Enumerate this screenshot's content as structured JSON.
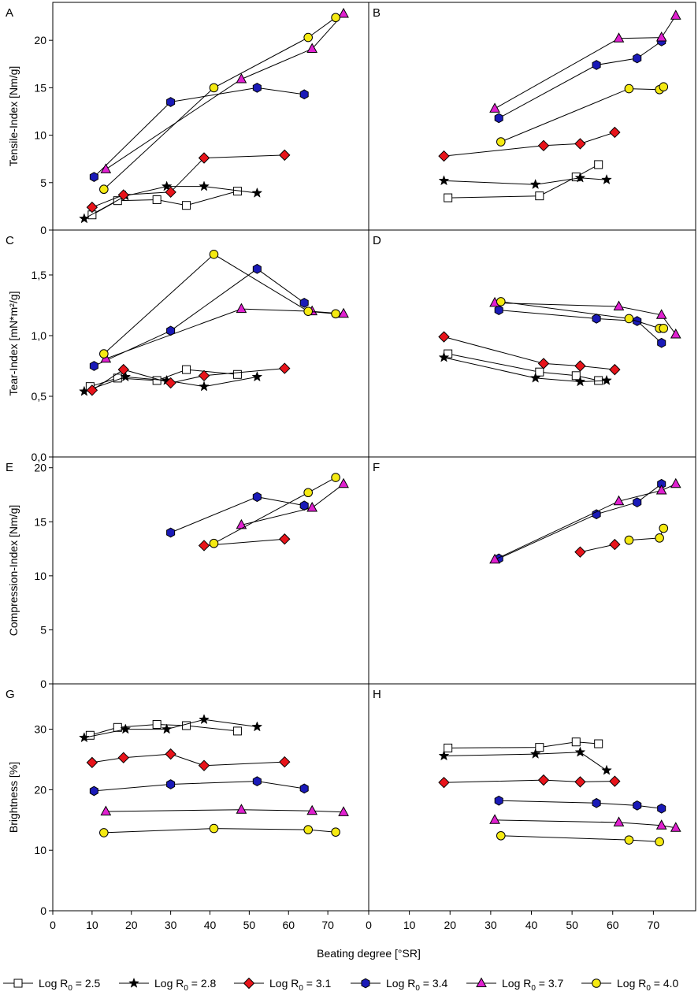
{
  "chart_data": {
    "type": "scatter",
    "x_label": "Beating degree [°SR]",
    "x_ticks": [
      "0",
      "10",
      "20",
      "30",
      "40",
      "50",
      "60",
      "70"
    ],
    "x_range": [
      0,
      80
    ],
    "legend": [
      {
        "key": "s25",
        "text": "Log R",
        "sub": "0",
        "value": " = 2.5",
        "marker": "square",
        "fill": "#ffffff"
      },
      {
        "key": "s28",
        "text": "Log R",
        "sub": "0",
        "value": " = 2.8",
        "marker": "star",
        "fill": "#000000"
      },
      {
        "key": "s31",
        "text": "Log R",
        "sub": "0",
        "value": " = 3.1",
        "marker": "diamond",
        "fill": "#e8141b"
      },
      {
        "key": "s34",
        "text": "Log R",
        "sub": "0",
        "value": " = 3.4",
        "marker": "hexagon",
        "fill": "#1a1ab8"
      },
      {
        "key": "s37",
        "text": "Log R",
        "sub": "0",
        "value": " = 3.7",
        "marker": "triangle",
        "fill": "#e020d0"
      },
      {
        "key": "s40",
        "text": "Log R",
        "sub": "0",
        "value": " = 4.0",
        "marker": "circle",
        "fill": "#f5ea12"
      }
    ],
    "rows": [
      {
        "ylabel": "Tensile-Index [Nm/g]",
        "ylim": [
          0,
          24
        ],
        "yticks": [
          0,
          5,
          10,
          15,
          20
        ],
        "ytick_labels": [
          "0",
          "5",
          "10",
          "15",
          "20"
        ],
        "panels": [
          {
            "letter": "A",
            "series": {
              "s25": [
                [
                  10,
                  1.6
                ],
                [
                  16.5,
                  3.1
                ],
                [
                  26.5,
                  3.2
                ],
                [
                  34,
                  2.6
                ],
                [
                  47,
                  4.1
                ]
              ],
              "s28": [
                [
                  8,
                  1.2
                ],
                [
                  18.5,
                  3.6
                ],
                [
                  29,
                  4.6
                ],
                [
                  38.5,
                  4.6
                ],
                [
                  52,
                  3.9
                ]
              ],
              "s31": [
                [
                  10,
                  2.4
                ],
                [
                  18,
                  3.7
                ],
                [
                  30,
                  4.0
                ],
                [
                  38.5,
                  7.6
                ],
                [
                  59,
                  7.9
                ]
              ],
              "s34": [
                [
                  10.5,
                  5.6
                ],
                [
                  30,
                  13.5
                ],
                [
                  52,
                  15.0
                ],
                [
                  64,
                  14.3
                ]
              ],
              "s37": [
                [
                  13.5,
                  6.4
                ],
                [
                  48,
                  15.9
                ],
                [
                  66,
                  19.1
                ],
                [
                  74,
                  22.8
                ]
              ],
              "s40": [
                [
                  13,
                  4.3
                ],
                [
                  41,
                  15.0
                ],
                [
                  65,
                  20.3
                ],
                [
                  72,
                  22.4
                ]
              ]
            }
          },
          {
            "letter": "B",
            "series": {
              "s25": [
                [
                  19.5,
                  3.4
                ],
                [
                  42,
                  3.6
                ],
                [
                  51,
                  5.6
                ],
                [
                  56.5,
                  6.9
                ]
              ],
              "s28": [
                [
                  18.5,
                  5.2
                ],
                [
                  41,
                  4.8
                ],
                [
                  52,
                  5.5
                ],
                [
                  58.5,
                  5.3
                ]
              ],
              "s31": [
                [
                  18.5,
                  7.8
                ],
                [
                  43,
                  8.9
                ],
                [
                  52,
                  9.1
                ],
                [
                  60.5,
                  10.3
                ]
              ],
              "s34": [
                [
                  32,
                  11.8
                ],
                [
                  56,
                  17.4
                ],
                [
                  66,
                  18.1
                ],
                [
                  72,
                  19.9
                ]
              ],
              "s37": [
                [
                  31,
                  12.8
                ],
                [
                  61.5,
                  20.2
                ],
                [
                  72,
                  20.3
                ],
                [
                  75.5,
                  22.6
                ]
              ],
              "s40": [
                [
                  32.5,
                  9.3
                ],
                [
                  64,
                  14.9
                ],
                [
                  71.5,
                  14.8
                ],
                [
                  72.5,
                  15.1
                ]
              ]
            }
          }
        ]
      },
      {
        "ylabel": "Tear-Index [mN*m²/g]",
        "ylim": [
          0,
          1.87
        ],
        "yticks": [
          0,
          0.5,
          1.0,
          1.5
        ],
        "ytick_labels": [
          "0,0",
          "0,5",
          "1,0",
          "1,5"
        ],
        "panels": [
          {
            "letter": "C",
            "series": {
              "s25": [
                [
                  9.5,
                  0.58
                ],
                [
                  16.5,
                  0.65
                ],
                [
                  26.5,
                  0.63
                ],
                [
                  34,
                  0.72
                ],
                [
                  47,
                  0.68
                ]
              ],
              "s28": [
                [
                  8,
                  0.54
                ],
                [
                  18.5,
                  0.66
                ],
                [
                  29,
                  0.63
                ],
                [
                  38.5,
                  0.58
                ],
                [
                  52,
                  0.66
                ]
              ],
              "s31": [
                [
                  10,
                  0.55
                ],
                [
                  18,
                  0.72
                ],
                [
                  30,
                  0.61
                ],
                [
                  38.5,
                  0.67
                ],
                [
                  59,
                  0.73
                ]
              ],
              "s34": [
                [
                  10.5,
                  0.75
                ],
                [
                  30,
                  1.04
                ],
                [
                  52,
                  1.55
                ],
                [
                  64,
                  1.27
                ]
              ],
              "s37": [
                [
                  13.5,
                  0.81
                ],
                [
                  48,
                  1.22
                ],
                [
                  66,
                  1.2
                ],
                [
                  74,
                  1.18
                ]
              ],
              "s40": [
                [
                  13,
                  0.85
                ],
                [
                  41,
                  1.67
                ],
                [
                  65,
                  1.2
                ],
                [
                  72,
                  1.18
                ]
              ]
            }
          },
          {
            "letter": "D",
            "series": {
              "s25": [
                [
                  19.5,
                  0.85
                ],
                [
                  42,
                  0.7
                ],
                [
                  51,
                  0.67
                ],
                [
                  56.5,
                  0.63
                ]
              ],
              "s28": [
                [
                  18.5,
                  0.82
                ],
                [
                  41,
                  0.65
                ],
                [
                  52,
                  0.62
                ],
                [
                  58.5,
                  0.63
                ]
              ],
              "s31": [
                [
                  18.5,
                  0.99
                ],
                [
                  43,
                  0.77
                ],
                [
                  52,
                  0.75
                ],
                [
                  60.5,
                  0.72
                ]
              ],
              "s34": [
                [
                  32,
                  1.21
                ],
                [
                  56,
                  1.14
                ],
                [
                  66,
                  1.12
                ],
                [
                  72,
                  0.94
                ]
              ],
              "s37": [
                [
                  31,
                  1.27
                ],
                [
                  61.5,
                  1.24
                ],
                [
                  72,
                  1.17
                ],
                [
                  75.5,
                  1.01
                ]
              ],
              "s40": [
                [
                  32.5,
                  1.28
                ],
                [
                  64,
                  1.14
                ],
                [
                  71.5,
                  1.06
                ],
                [
                  72.5,
                  1.06
                ]
              ]
            }
          }
        ]
      },
      {
        "ylabel": "Compression-Index [Nm/g]",
        "ylim": [
          0,
          21
        ],
        "yticks": [
          0,
          5,
          10,
          15,
          20
        ],
        "ytick_labels": [
          "0",
          "5",
          "10",
          "15",
          "20"
        ],
        "panels": [
          {
            "letter": "E",
            "series": {
              "s31": [
                [
                  38.5,
                  12.8
                ],
                [
                  59,
                  13.4
                ]
              ],
              "s34": [
                [
                  30,
                  14.0
                ],
                [
                  52,
                  17.3
                ],
                [
                  64,
                  16.5
                ]
              ],
              "s37": [
                [
                  48,
                  14.7
                ],
                [
                  66,
                  16.3
                ],
                [
                  74,
                  18.5
                ]
              ],
              "s40": [
                [
                  41,
                  13.0
                ],
                [
                  65,
                  17.7
                ],
                [
                  72,
                  19.1
                ]
              ]
            }
          },
          {
            "letter": "F",
            "series": {
              "s31": [
                [
                  52,
                  12.2
                ],
                [
                  60.5,
                  12.9
                ]
              ],
              "s34": [
                [
                  32,
                  11.6
                ],
                [
                  56,
                  15.7
                ],
                [
                  66,
                  16.8
                ],
                [
                  72,
                  18.5
                ]
              ],
              "s37": [
                [
                  31,
                  11.5
                ],
                [
                  61.5,
                  16.9
                ],
                [
                  72,
                  17.9
                ],
                [
                  75.5,
                  18.5
                ]
              ],
              "s40": [
                [
                  64,
                  13.3
                ],
                [
                  71.5,
                  13.5
                ],
                [
                  72.5,
                  14.4
                ]
              ]
            }
          }
        ]
      },
      {
        "ylabel": "Brightness [%]",
        "ylim": [
          0,
          37.5
        ],
        "yticks": [
          0,
          10,
          20,
          30
        ],
        "ytick_labels": [
          "0",
          "10",
          "20",
          "30"
        ],
        "panels": [
          {
            "letter": "G",
            "series": {
              "s25": [
                [
                  9.5,
                  29.0
                ],
                [
                  16.5,
                  30.3
                ],
                [
                  26.5,
                  30.8
                ],
                [
                  34,
                  30.6
                ],
                [
                  47,
                  29.7
                ]
              ],
              "s28": [
                [
                  8,
                  28.6
                ],
                [
                  18.5,
                  30.0
                ],
                [
                  29,
                  30.0
                ],
                [
                  38.5,
                  31.6
                ],
                [
                  52,
                  30.4
                ]
              ],
              "s31": [
                [
                  10,
                  24.5
                ],
                [
                  18,
                  25.3
                ],
                [
                  30,
                  25.9
                ],
                [
                  38.5,
                  24.0
                ],
                [
                  59,
                  24.6
                ]
              ],
              "s34": [
                [
                  10.5,
                  19.8
                ],
                [
                  30,
                  20.9
                ],
                [
                  52,
                  21.4
                ],
                [
                  64,
                  20.2
                ]
              ],
              "s37": [
                [
                  13.5,
                  16.4
                ],
                [
                  48,
                  16.7
                ],
                [
                  66,
                  16.5
                ],
                [
                  74,
                  16.3
                ]
              ],
              "s40": [
                [
                  13,
                  12.9
                ],
                [
                  41,
                  13.6
                ],
                [
                  65,
                  13.4
                ],
                [
                  72,
                  13.0
                ]
              ]
            }
          },
          {
            "letter": "H",
            "series": {
              "s25": [
                [
                  19.5,
                  26.9
                ],
                [
                  42,
                  27.0
                ],
                [
                  51,
                  27.9
                ],
                [
                  56.5,
                  27.6
                ]
              ],
              "s28": [
                [
                  18.5,
                  25.6
                ],
                [
                  41,
                  25.9
                ],
                [
                  52,
                  26.2
                ],
                [
                  58.5,
                  23.2
                ]
              ],
              "s31": [
                [
                  18.5,
                  21.2
                ],
                [
                  43,
                  21.6
                ],
                [
                  52,
                  21.3
                ],
                [
                  60.5,
                  21.4
                ]
              ],
              "s34": [
                [
                  32,
                  18.2
                ],
                [
                  56,
                  17.8
                ],
                [
                  66,
                  17.4
                ],
                [
                  72,
                  16.9
                ]
              ],
              "s37": [
                [
                  31,
                  15.0
                ],
                [
                  61.5,
                  14.6
                ],
                [
                  72,
                  14.1
                ],
                [
                  75.5,
                  13.7
                ]
              ],
              "s40": [
                [
                  32.5,
                  12.4
                ],
                [
                  64,
                  11.7
                ],
                [
                  71.5,
                  11.4
                ]
              ]
            }
          }
        ]
      }
    ]
  }
}
